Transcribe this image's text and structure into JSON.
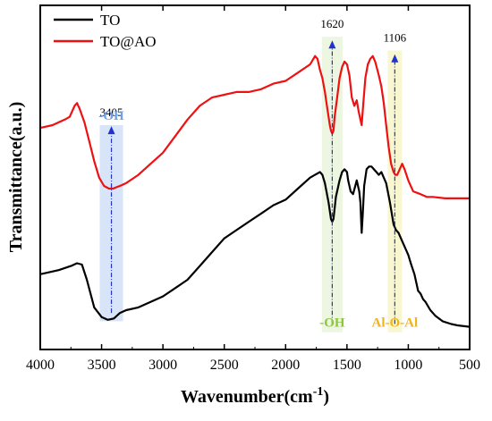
{
  "chart_data": {
    "type": "line",
    "xlabel": "Wavenumber(cm",
    "xlabel_superscript": "-1",
    "xlabel_close": ")",
    "ylabel": "Transmittance(a.u.)",
    "xlim": [
      4000,
      500
    ],
    "x_reversed": true,
    "x_ticks": [
      4000,
      3500,
      3000,
      2500,
      2000,
      1500,
      1000,
      500
    ],
    "y_ticks": "none",
    "ylim": [
      0,
      100
    ],
    "grid": false,
    "legend_placement": "top-left",
    "series": [
      {
        "name": "TO",
        "color": "#000000",
        "points": [
          [
            4000,
            24
          ],
          [
            3850,
            25.5
          ],
          [
            3750,
            27
          ],
          [
            3700,
            28
          ],
          [
            3660,
            27.5
          ],
          [
            3620,
            22
          ],
          [
            3560,
            12
          ],
          [
            3500,
            8.5
          ],
          [
            3450,
            7.5
          ],
          [
            3400,
            8
          ],
          [
            3350,
            10
          ],
          [
            3300,
            11
          ],
          [
            3200,
            12
          ],
          [
            3100,
            14
          ],
          [
            3000,
            16
          ],
          [
            2900,
            19
          ],
          [
            2800,
            22
          ],
          [
            2700,
            27
          ],
          [
            2600,
            32
          ],
          [
            2500,
            37
          ],
          [
            2400,
            40
          ],
          [
            2300,
            43
          ],
          [
            2200,
            46
          ],
          [
            2100,
            49
          ],
          [
            2000,
            51
          ],
          [
            1900,
            55
          ],
          [
            1800,
            59
          ],
          [
            1760,
            60
          ],
          [
            1720,
            61
          ],
          [
            1700,
            60
          ],
          [
            1680,
            57
          ],
          [
            1650,
            50
          ],
          [
            1630,
            44
          ],
          [
            1620,
            43
          ],
          [
            1610,
            44
          ],
          [
            1590,
            52
          ],
          [
            1560,
            58
          ],
          [
            1540,
            61
          ],
          [
            1520,
            62
          ],
          [
            1500,
            61
          ],
          [
            1490,
            58
          ],
          [
            1470,
            54
          ],
          [
            1450,
            53
          ],
          [
            1420,
            58
          ],
          [
            1400,
            54
          ],
          [
            1390,
            50
          ],
          [
            1380,
            39
          ],
          [
            1372,
            45
          ],
          [
            1360,
            56
          ],
          [
            1340,
            62
          ],
          [
            1320,
            63
          ],
          [
            1300,
            63
          ],
          [
            1280,
            62
          ],
          [
            1260,
            61
          ],
          [
            1240,
            60
          ],
          [
            1220,
            61
          ],
          [
            1200,
            59
          ],
          [
            1180,
            57
          ],
          [
            1150,
            50
          ],
          [
            1120,
            42
          ],
          [
            1100,
            40
          ],
          [
            1080,
            39
          ],
          [
            1050,
            36
          ],
          [
            1000,
            31
          ],
          [
            980,
            28
          ],
          [
            950,
            24
          ],
          [
            920,
            18
          ],
          [
            900,
            17
          ],
          [
            880,
            15
          ],
          [
            860,
            14
          ],
          [
            820,
            11
          ],
          [
            780,
            9
          ],
          [
            720,
            7
          ],
          [
            650,
            6
          ],
          [
            600,
            5.5
          ],
          [
            500,
            5
          ]
        ]
      },
      {
        "name": "TO@AO",
        "color": "#ee1111",
        "points": [
          [
            4000,
            77
          ],
          [
            3900,
            78
          ],
          [
            3800,
            80
          ],
          [
            3760,
            81
          ],
          [
            3720,
            85
          ],
          [
            3700,
            86
          ],
          [
            3680,
            84
          ],
          [
            3640,
            79
          ],
          [
            3600,
            72
          ],
          [
            3560,
            65
          ],
          [
            3520,
            59
          ],
          [
            3480,
            56
          ],
          [
            3440,
            55
          ],
          [
            3405,
            55
          ],
          [
            3380,
            55.5
          ],
          [
            3350,
            56
          ],
          [
            3300,
            57
          ],
          [
            3200,
            60
          ],
          [
            3100,
            64
          ],
          [
            3000,
            68
          ],
          [
            2900,
            74
          ],
          [
            2800,
            80
          ],
          [
            2700,
            85
          ],
          [
            2600,
            88
          ],
          [
            2500,
            89
          ],
          [
            2400,
            90
          ],
          [
            2300,
            90
          ],
          [
            2200,
            91
          ],
          [
            2100,
            93
          ],
          [
            2000,
            94
          ],
          [
            1900,
            97
          ],
          [
            1800,
            100
          ],
          [
            1760,
            103
          ],
          [
            1740,
            102
          ],
          [
            1720,
            98
          ],
          [
            1700,
            95
          ],
          [
            1680,
            90
          ],
          [
            1660,
            84
          ],
          [
            1640,
            78
          ],
          [
            1630,
            76
          ],
          [
            1620,
            75
          ],
          [
            1610,
            76
          ],
          [
            1600,
            81
          ],
          [
            1580,
            88
          ],
          [
            1560,
            95
          ],
          [
            1540,
            99
          ],
          [
            1520,
            101
          ],
          [
            1500,
            100
          ],
          [
            1480,
            96
          ],
          [
            1460,
            88
          ],
          [
            1440,
            85
          ],
          [
            1420,
            87
          ],
          [
            1405,
            83
          ],
          [
            1390,
            80
          ],
          [
            1380,
            78
          ],
          [
            1370,
            84
          ],
          [
            1350,
            95
          ],
          [
            1330,
            100
          ],
          [
            1310,
            102
          ],
          [
            1290,
            103
          ],
          [
            1270,
            101
          ],
          [
            1240,
            96
          ],
          [
            1220,
            92
          ],
          [
            1200,
            86
          ],
          [
            1180,
            78
          ],
          [
            1160,
            70
          ],
          [
            1140,
            64
          ],
          [
            1120,
            61
          ],
          [
            1106,
            60
          ],
          [
            1090,
            60
          ],
          [
            1070,
            62
          ],
          [
            1050,
            64
          ],
          [
            1030,
            62
          ],
          [
            1000,
            58
          ],
          [
            960,
            54
          ],
          [
            900,
            53
          ],
          [
            850,
            52
          ],
          [
            800,
            52
          ],
          [
            700,
            51.5
          ],
          [
            600,
            51.5
          ],
          [
            500,
            51.5
          ]
        ]
      }
    ],
    "annotations": [
      {
        "band_center": 3420,
        "band_half_width": 95,
        "band_color": "#b8cdf0",
        "arrow_from_y": 10,
        "arrow_to_y": 77,
        "peak_label": "3405",
        "peak_label_y": 80,
        "group_label": "-OH",
        "group_label_color": "#6fa0ea",
        "group_label_position": "above"
      },
      {
        "band_center": 1620,
        "band_half_width": 85,
        "band_color": "#dceec8",
        "arrow_from_y": 6,
        "arrow_to_y": 108,
        "peak_label": "1620",
        "peak_label_y": 112,
        "group_label": "-OH",
        "group_label_color": "#8cc63f",
        "group_label_position": "below"
      },
      {
        "band_center": 1110,
        "band_half_width": 58,
        "band_color": "#f4f0a8",
        "arrow_from_y": 6,
        "arrow_to_y": 103,
        "peak_label": "1106",
        "peak_label_y": 107,
        "group_label": "Al-O-Al",
        "group_label_color": "#f0b418",
        "group_label_position": "below"
      }
    ]
  }
}
